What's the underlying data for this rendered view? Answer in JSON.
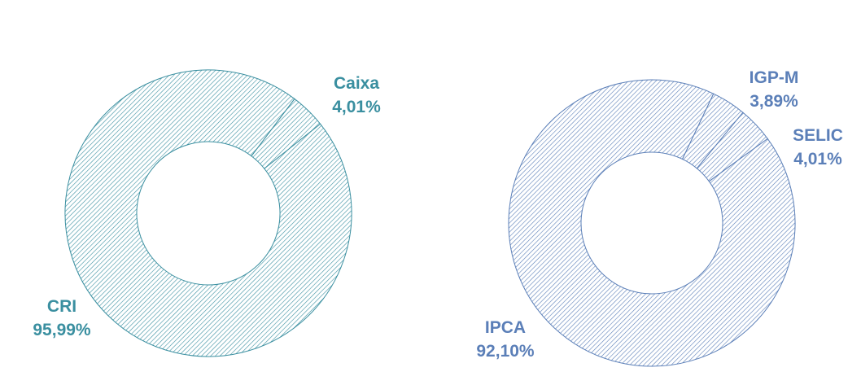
{
  "colors": {
    "left_chart": "#3a8fa0",
    "right_chart": "#5b7fb8",
    "background": "#ffffff"
  },
  "chart_data": [
    {
      "type": "pie",
      "style": "donut, diagonal hatch fill",
      "title": "",
      "slices": [
        {
          "label": "Caixa",
          "value": 4.01,
          "value_label": "4,01%"
        },
        {
          "label": "CRI",
          "value": 95.99,
          "value_label": "95,99%"
        }
      ]
    },
    {
      "type": "pie",
      "style": "donut, diagonal hatch fill",
      "title": "",
      "slices": [
        {
          "label": "IGP-M",
          "value": 3.89,
          "value_label": "3,89%"
        },
        {
          "label": "SELIC",
          "value": 4.01,
          "value_label": "4,01%"
        },
        {
          "label": "IPCA",
          "value": 92.1,
          "value_label": "92,10%"
        }
      ]
    }
  ]
}
